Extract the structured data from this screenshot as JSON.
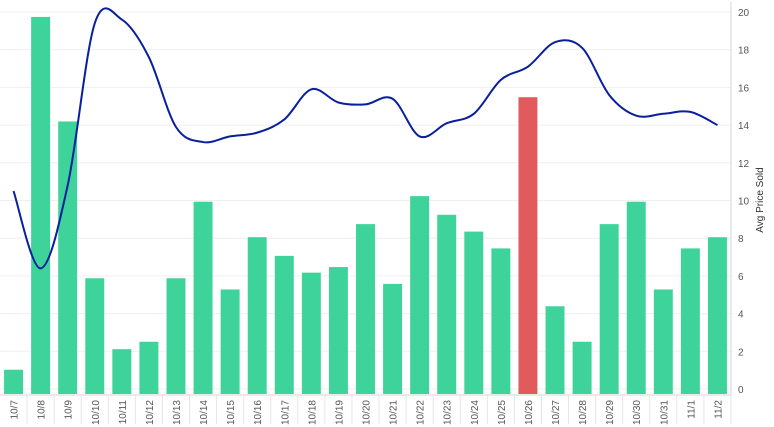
{
  "chart_data": {
    "type": "bar",
    "categories": [
      "10/7",
      "10/8",
      "10/9",
      "10/10",
      "10/11",
      "10/12",
      "10/13",
      "10/14",
      "10/15",
      "10/16",
      "10/17",
      "10/18",
      "10/19",
      "10/20",
      "10/21",
      "10/22",
      "10/23",
      "10/24",
      "10/25",
      "10/26",
      "10/27",
      "10/28",
      "10/29",
      "10/30",
      "10/31",
      "11/1",
      "11/2"
    ],
    "bar_series": {
      "values": [
        1.3,
        20.2,
        14.6,
        6.2,
        2.4,
        2.8,
        6.2,
        10.3,
        5.6,
        8.4,
        7.4,
        6.5,
        6.8,
        9.1,
        5.9,
        10.6,
        9.6,
        8.7,
        7.8,
        15.9,
        4.7,
        2.8,
        9.1,
        10.3,
        5.6,
        7.8,
        8.4
      ],
      "color": "#3ed39a",
      "highlight_index": 19,
      "highlight_color": "#e05a5e"
    },
    "line_series": {
      "axis_label": "Avg Price Sold",
      "values": [
        10.5,
        6.4,
        10.8,
        19.4,
        19.6,
        17.6,
        13.9,
        13.1,
        13.4,
        13.6,
        14.3,
        15.9,
        15.2,
        15.1,
        15.4,
        13.4,
        14.1,
        14.6,
        16.4,
        17.1,
        18.4,
        18.1,
        15.6,
        14.5,
        14.6,
        14.7,
        14.0
      ],
      "color": "#0a1f9c"
    },
    "y_right": {
      "ticks": [
        "0",
        "2",
        "4",
        "6",
        "8",
        "10",
        "12",
        "14",
        "16",
        "18",
        "20"
      ],
      "range": [
        0,
        20
      ]
    },
    "grid": true,
    "bar_range": [
      0,
      21
    ]
  }
}
